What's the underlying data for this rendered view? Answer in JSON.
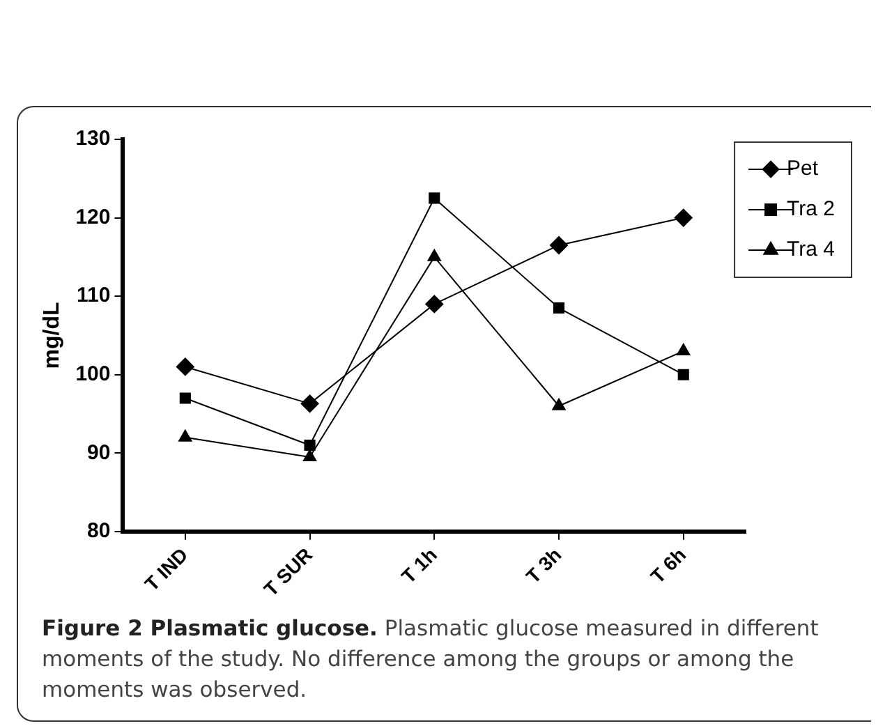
{
  "chart_data": {
    "type": "line",
    "title": "Figure 2 Plasmatic glucose.",
    "subtitle": "Plasmatic glucose measured in different moments of the study. No difference among the groups or among the moments was observed.",
    "ylabel": "mg/dL",
    "categories": [
      "T IND",
      "T SUR",
      "T 1h",
      "T 3h",
      "T 6h"
    ],
    "series": [
      {
        "name": "Pet",
        "color": "#000000",
        "marker": "diamond",
        "values": [
          101,
          96.3,
          109,
          116.5,
          120
        ]
      },
      {
        "name": "Tra 2",
        "color": "#000000",
        "marker": "square",
        "values": [
          97,
          91,
          122.5,
          108.5,
          100
        ]
      },
      {
        "name": "Tra 4",
        "color": "#000000",
        "marker": "triangle",
        "values": [
          92,
          89.5,
          115,
          96,
          103
        ]
      }
    ],
    "ylim": [
      80,
      130
    ],
    "yticks": [
      80,
      90,
      100,
      110,
      120,
      130
    ],
    "grid": false,
    "legend": "top right",
    "line_style": "solid"
  }
}
